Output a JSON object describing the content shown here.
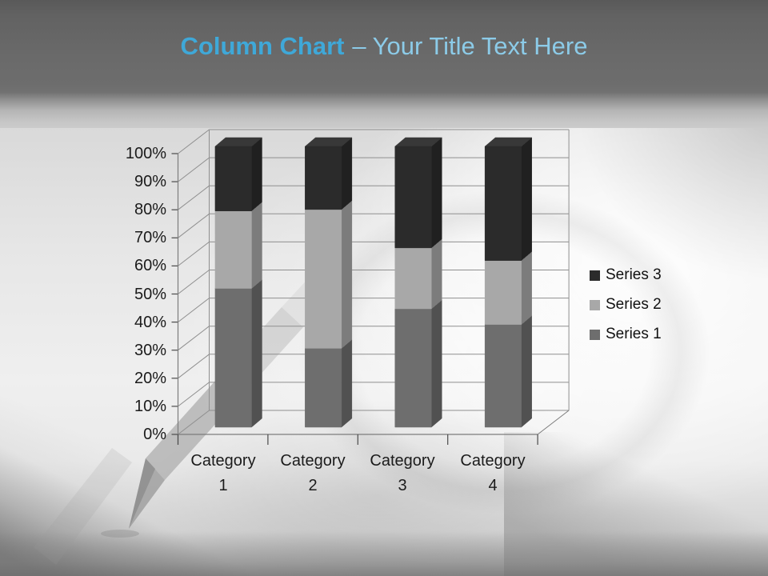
{
  "slide": {
    "title_bold": "Column Chart",
    "title_rest": "– Your Title Text Here"
  },
  "chart_data": {
    "type": "bar",
    "variant": "100%-stacked-3d-column",
    "title": "",
    "xlabel": "",
    "ylabel": "",
    "categories": [
      "Category 1",
      "Category 2",
      "Category 3",
      "Category 4"
    ],
    "series": [
      {
        "name": "Series 1",
        "values": [
          4.3,
          2.5,
          3.5,
          4.5
        ],
        "color": "#6e6e6e"
      },
      {
        "name": "Series 2",
        "values": [
          2.4,
          4.4,
          1.8,
          2.8
        ],
        "color": "#a8a8a8"
      },
      {
        "name": "Series 3",
        "values": [
          2.0,
          2.0,
          3.0,
          5.0
        ],
        "color": "#2b2b2b"
      }
    ],
    "percent_stacked_by_category": [
      {
        "category": "Category 1",
        "Series 1": 49.4,
        "Series 2": 27.6,
        "Series 3": 23.0
      },
      {
        "category": "Category 2",
        "Series 1": 28.1,
        "Series 2": 49.4,
        "Series 3": 22.5
      },
      {
        "category": "Category 3",
        "Series 1": 42.2,
        "Series 2": 21.7,
        "Series 3": 36.1
      },
      {
        "category": "Category 4",
        "Series 1": 36.6,
        "Series 2": 22.8,
        "Series 3": 40.6
      }
    ],
    "y_axis": {
      "ticks": [
        "0%",
        "10%",
        "20%",
        "30%",
        "40%",
        "50%",
        "60%",
        "70%",
        "80%",
        "90%",
        "100%"
      ],
      "min": 0,
      "max": 100
    },
    "grid": true,
    "legend": {
      "position": "right",
      "entries": [
        "Series 3",
        "Series 2",
        "Series 1"
      ]
    }
  },
  "colors": {
    "title_bold": "#3fa8d8",
    "title_rest": "#8ccbe8",
    "header_band": "#6a6a6a",
    "axis_text": "#1b1b1b",
    "gridline": "#8f8f8f"
  }
}
